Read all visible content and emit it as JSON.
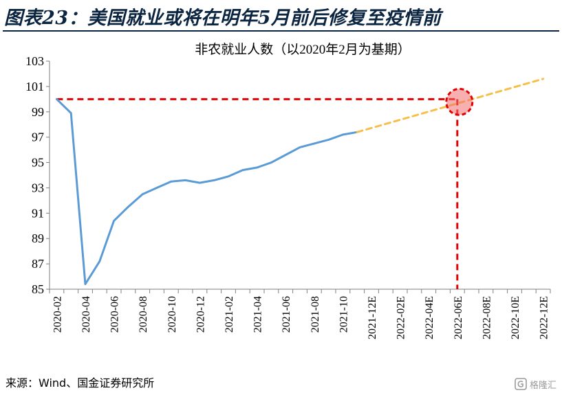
{
  "header": {
    "figure_title": "图表23：美国就业或将在明年5月前后修复至疫情前"
  },
  "chart_data": {
    "type": "line",
    "title": "非农就业人数（以2020年2月为基期）",
    "xlabel": "",
    "ylabel": "",
    "ylim": [
      85,
      103
    ],
    "yticks": [
      85,
      87,
      89,
      91,
      93,
      95,
      97,
      99,
      101,
      103
    ],
    "categories": [
      "2020-02",
      "2020-03",
      "2020-04",
      "2020-05",
      "2020-06",
      "2020-07",
      "2020-08",
      "2020-09",
      "2020-10",
      "2020-11",
      "2020-12",
      "2021-01",
      "2021-02",
      "2021-03",
      "2021-04",
      "2021-05",
      "2021-06",
      "2021-07",
      "2021-08",
      "2021-09",
      "2021-10",
      "2021-11",
      "2021-12E",
      "2022-01E",
      "2022-02E",
      "2022-03E",
      "2022-04E",
      "2022-05E",
      "2022-06E",
      "2022-07E",
      "2022-08E",
      "2022-09E",
      "2022-10E",
      "2022-11E",
      "2022-12E"
    ],
    "xtick_labels": [
      "2020-02",
      "2020-04",
      "2020-06",
      "2020-08",
      "2020-10",
      "2020-12",
      "2021-02",
      "2021-04",
      "2021-06",
      "2021-08",
      "2021-10",
      "2021-12E",
      "2022-02E",
      "2022-04E",
      "2022-06E",
      "2022-08E",
      "2022-10E",
      "2022-12E"
    ],
    "series": [
      {
        "name": "",
        "style": "solid",
        "color": "#5b9bd5",
        "x": [
          "2020-02",
          "2020-03",
          "2020-04",
          "2020-05",
          "2020-06",
          "2020-07",
          "2020-08",
          "2020-09",
          "2020-10",
          "2020-11",
          "2020-12",
          "2021-01",
          "2021-02",
          "2021-03",
          "2021-04",
          "2021-05",
          "2021-06",
          "2021-07",
          "2021-08",
          "2021-09",
          "2021-10",
          "2021-11"
        ],
        "values": [
          100.0,
          98.9,
          85.4,
          87.2,
          90.4,
          91.5,
          92.5,
          93.0,
          93.5,
          93.6,
          93.4,
          93.6,
          93.9,
          94.4,
          94.6,
          95.0,
          95.6,
          96.2,
          96.5,
          96.8,
          97.2,
          97.4
        ]
      },
      {
        "name": "",
        "style": "dashed",
        "color": "#f5c04a",
        "x": [
          "2021-11",
          "2022-12E"
        ],
        "values": [
          97.4,
          101.6
        ]
      }
    ],
    "reference": {
      "level_value": 100.0,
      "month": "2022-06E",
      "color": "#e00000"
    }
  },
  "footer": {
    "source": "来源：Wind、国金证券研究所",
    "watermark": "格隆汇"
  }
}
